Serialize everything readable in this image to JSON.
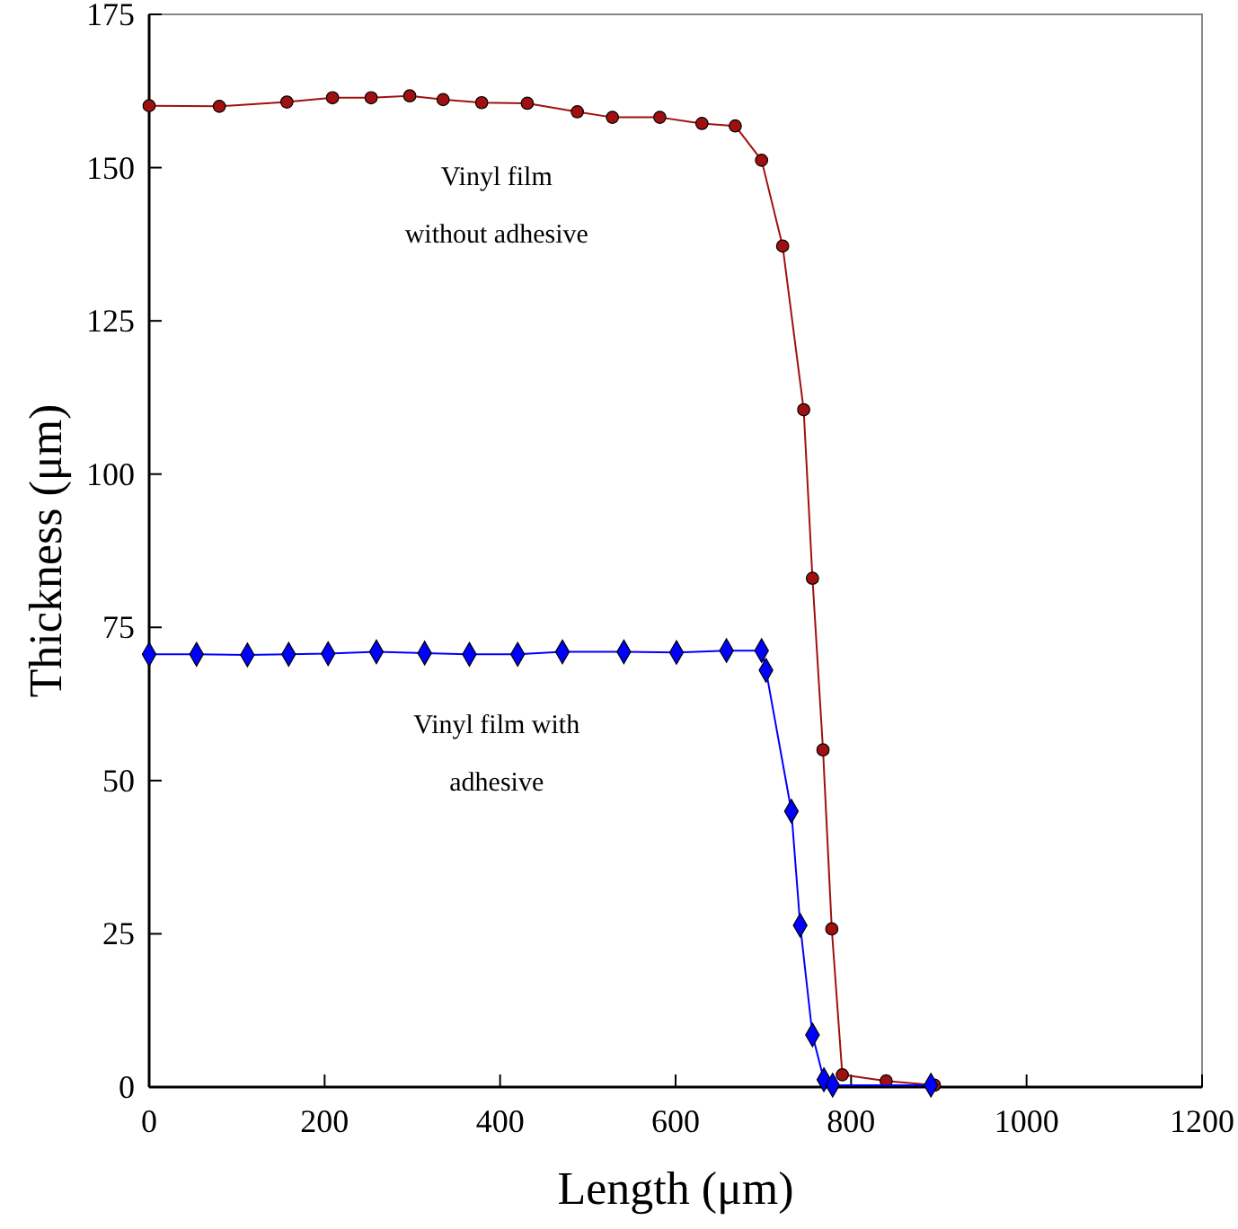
{
  "chart_data": {
    "type": "line",
    "xlabel": "Length (μm)",
    "ylabel": "Thickness (μm)",
    "xlim": [
      0,
      1200
    ],
    "ylim": [
      0,
      175
    ],
    "xticks": [
      0,
      200,
      400,
      600,
      800,
      1000,
      1200
    ],
    "yticks": [
      0,
      25,
      50,
      75,
      100,
      125,
      150,
      175
    ],
    "grid": false,
    "series": [
      {
        "color": "#a01010",
        "marker": "circle",
        "x": [
          0,
          80,
          157,
          209,
          253,
          297,
          335,
          379,
          431,
          488,
          528,
          582,
          630,
          668,
          698,
          722,
          746,
          756,
          768,
          778,
          790,
          840,
          895
        ],
        "values": [
          160.1,
          160,
          160.7,
          161.4,
          161.4,
          161.7,
          161.1,
          160.6,
          160.5,
          159.1,
          158.2,
          158.2,
          157.2,
          156.8,
          151.2,
          137.2,
          110.5,
          83,
          55,
          25.8,
          2,
          1,
          0.3
        ]
      },
      {
        "color": "#0000ff",
        "marker": "diamond",
        "x": [
          0,
          54,
          112,
          159,
          204,
          259,
          314,
          365,
          420,
          471,
          541,
          601,
          658,
          698,
          703,
          732,
          742,
          756,
          769,
          779,
          891
        ],
        "values": [
          70.6,
          70.6,
          70.5,
          70.6,
          70.7,
          71,
          70.8,
          70.6,
          70.6,
          71,
          71,
          70.9,
          71.2,
          71.2,
          68,
          45,
          26.4,
          8.5,
          1.2,
          0.3,
          0.3
        ]
      }
    ],
    "annotations": [
      "Vinyl film\nwithout adhesive",
      "Vinyl film with\nadhesive"
    ]
  }
}
